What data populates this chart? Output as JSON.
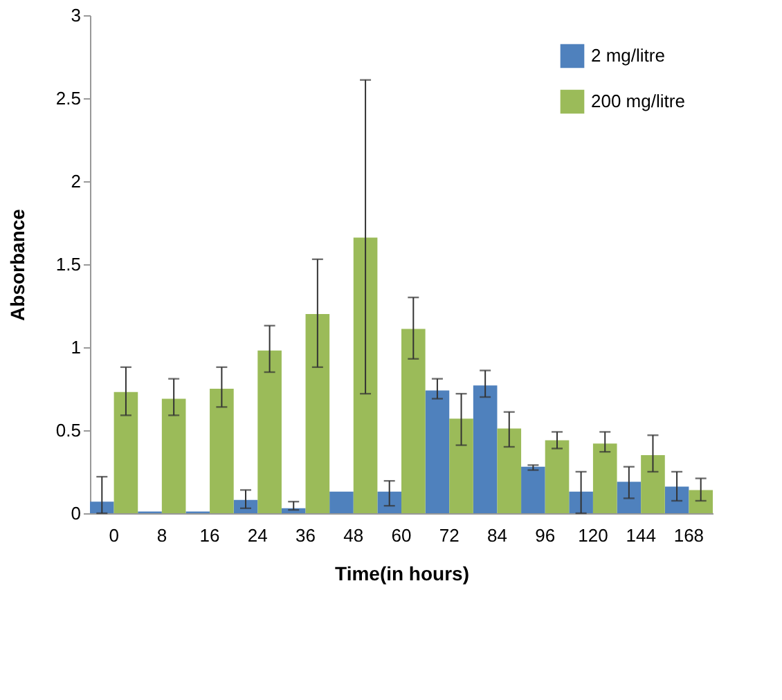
{
  "chart_data": {
    "type": "bar",
    "xlabel": "Time(in hours)",
    "ylabel": "Absorbance",
    "categories": [
      "0",
      "8",
      "16",
      "24",
      "36",
      "48",
      "60",
      "72",
      "84",
      "96",
      "120",
      "144",
      "168"
    ],
    "series": [
      {
        "name": "2 mg/litre",
        "color": "#4f81bd",
        "values": [
          0.07,
          0.01,
          0.01,
          0.08,
          0.03,
          0.13,
          0.13,
          0.74,
          0.77,
          0.28,
          0.13,
          0.19,
          0.16
        ],
        "errors": [
          [
            0,
            0.22
          ],
          null,
          null,
          [
            0.03,
            0.14
          ],
          [
            0.02,
            0.07
          ],
          null,
          [
            0.045,
            0.195
          ],
          [
            0.69,
            0.81
          ],
          [
            0.7,
            0.86
          ],
          [
            0.26,
            0.29
          ],
          [
            0,
            0.25
          ],
          [
            0.09,
            0.28
          ],
          [
            0.075,
            0.25
          ]
        ]
      },
      {
        "name": "200 mg/litre",
        "color": "#9bbb59",
        "values": [
          0.73,
          0.69,
          0.75,
          0.98,
          1.2,
          1.66,
          1.11,
          0.57,
          0.51,
          0.44,
          0.42,
          0.35,
          0.14
        ],
        "errors": [
          [
            0.59,
            0.88
          ],
          [
            0.59,
            0.81
          ],
          [
            0.64,
            0.88
          ],
          [
            0.85,
            1.13
          ],
          [
            0.88,
            1.53
          ],
          [
            0.72,
            2.61
          ],
          [
            0.93,
            1.3
          ],
          [
            0.41,
            0.72
          ],
          [
            0.4,
            0.61
          ],
          [
            0.39,
            0.49
          ],
          [
            0.37,
            0.49
          ],
          [
            0.25,
            0.47
          ],
          [
            0.075,
            0.21
          ]
        ]
      }
    ],
    "ylim": [
      0,
      3
    ],
    "yticks": [
      0,
      0.5,
      1,
      1.5,
      2,
      2.5,
      3
    ],
    "grid": false,
    "legend": "top right"
  }
}
